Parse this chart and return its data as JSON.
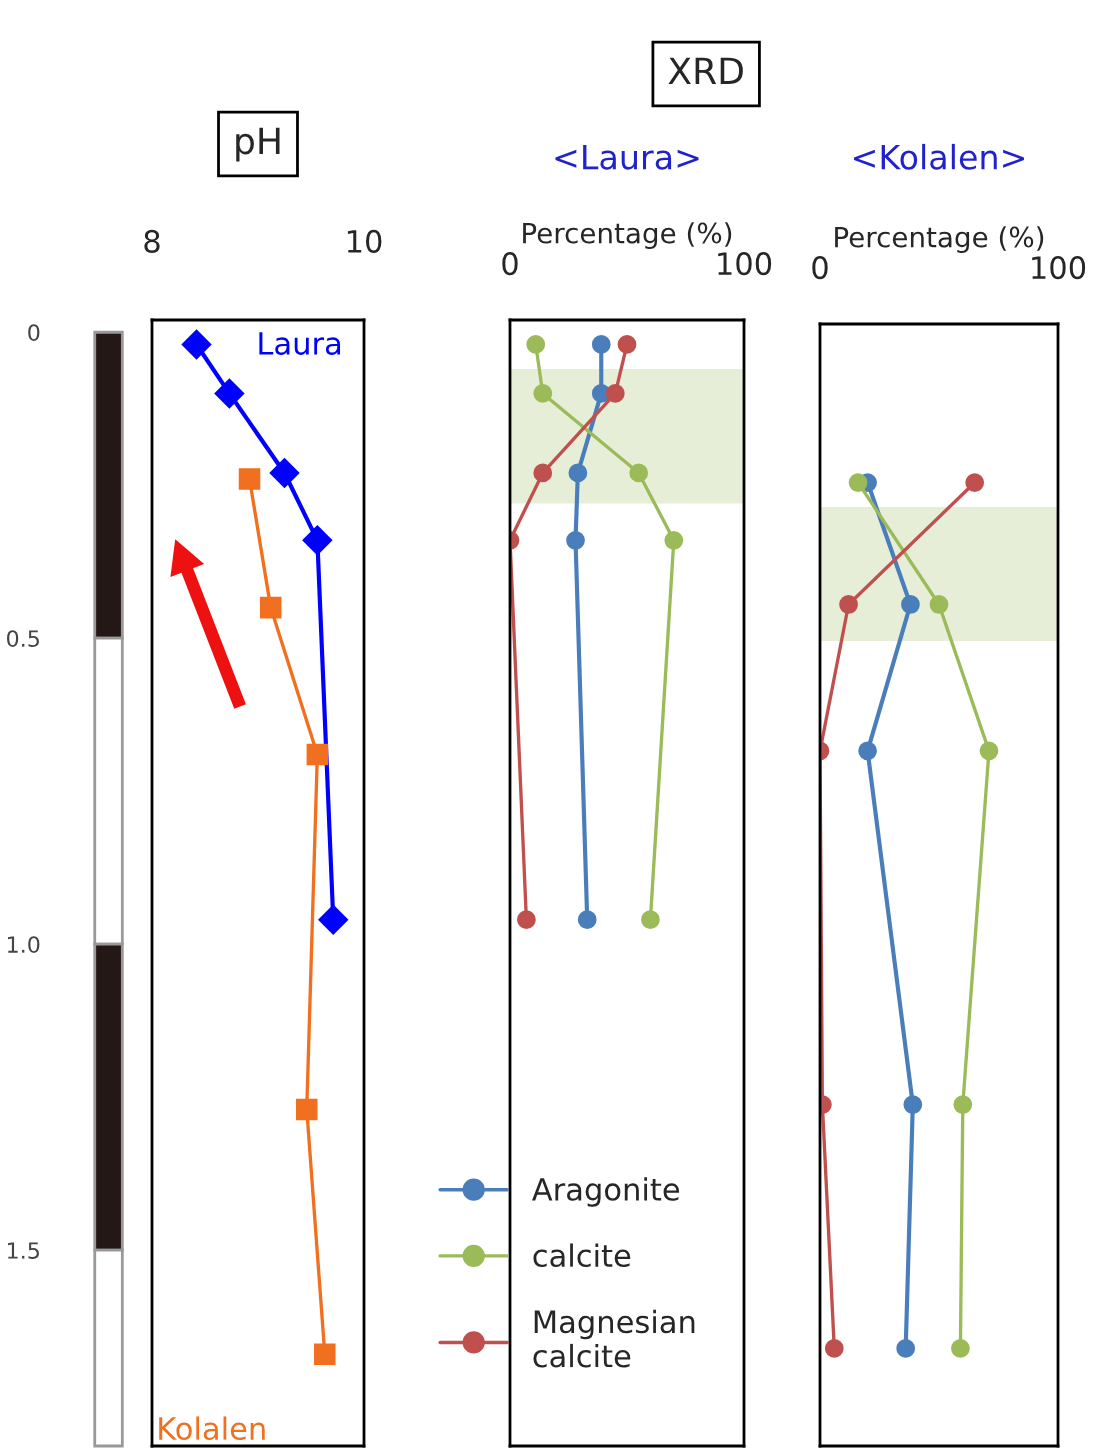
{
  "chart_data": [
    {
      "type": "line",
      "title": "pH",
      "xlim": [
        8,
        10
      ],
      "xticks": [
        8,
        10
      ],
      "ylim": [
        1.82,
        -0.02
      ],
      "yticks": [
        0,
        0.5,
        {
          "value": 1,
          "label": "1.0"
        },
        1.5
      ],
      "legend": false,
      "grid": false,
      "series": [
        {
          "name": "Laura",
          "color": "#0000ff",
          "marker": "diamond",
          "x": [
            8.42,
            8.73,
            9.25,
            9.56,
            9.71
          ],
          "values": [
            0.02,
            0.1,
            0.23,
            0.34,
            0.96
          ]
        },
        {
          "name": "Kolalen",
          "color": "#f07020",
          "marker": "square",
          "x": [
            8.92,
            9.12,
            9.56,
            9.46,
            9.63
          ],
          "values": [
            0.24,
            0.45,
            0.69,
            1.27,
            1.67
          ]
        }
      ]
    },
    {
      "type": "line",
      "title": "XRD",
      "subtitle": "<Laura>",
      "xlabel": "Percentage (%)",
      "xlim": [
        0,
        100
      ],
      "xticks": [
        0,
        100
      ],
      "ylim": [
        1.82,
        -0.02
      ],
      "tick_labels": "x",
      "marker": "circle",
      "legend": "bottom",
      "grid": false,
      "bands": [
        {
          "axis": "y",
          "from": 0.06,
          "to": 0.28,
          "color": "#e6eed8"
        }
      ],
      "series": [
        {
          "name": "Aragonite",
          "color": "#4a7ebb",
          "x": [
            39,
            39,
            29,
            28,
            33
          ],
          "values": [
            0.02,
            0.1,
            0.23,
            0.34,
            0.96
          ]
        },
        {
          "name": "calcite",
          "color": "#9bbb59",
          "x": [
            11,
            14,
            55,
            70,
            60
          ],
          "values": [
            0.02,
            0.1,
            0.23,
            0.34,
            0.96
          ]
        },
        {
          "name": "Magnesian\ncalcite",
          "color": "#c0504d",
          "x": [
            50,
            45,
            14,
            0,
            7
          ],
          "values": [
            0.02,
            0.1,
            0.23,
            0.34,
            0.96
          ]
        }
      ]
    },
    {
      "type": "line",
      "subtitle": "<Kolalen>",
      "xlabel": "Percentage (%)",
      "xlim": [
        0,
        100
      ],
      "xticks": [
        0,
        100
      ],
      "ylim": [
        1.82,
        -0.02
      ],
      "tick_labels": "x",
      "marker": "circle",
      "legend": false,
      "grid": false,
      "bands": [
        {
          "axis": "y",
          "from": 0.28,
          "to": 0.5,
          "color": "#e6eed8"
        }
      ],
      "series": [
        {
          "color": "#4a7ebb",
          "x": [
            20,
            38,
            20,
            39,
            36
          ],
          "values": [
            0.24,
            0.44,
            0.68,
            1.26,
            1.66
          ]
        },
        {
          "color": "#9bbb59",
          "x": [
            16,
            50,
            71,
            60,
            59
          ],
          "values": [
            0.24,
            0.44,
            0.68,
            1.26,
            1.66
          ]
        },
        {
          "color": "#c0504d",
          "x": [
            65,
            12,
            0,
            1,
            6
          ],
          "values": [
            0.24,
            0.44,
            0.68,
            1.26,
            1.66
          ]
        }
      ]
    }
  ]
}
